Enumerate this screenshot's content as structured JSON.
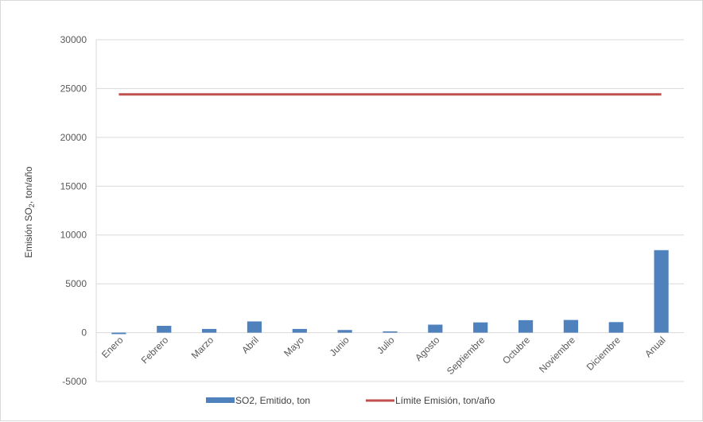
{
  "chart_data": {
    "type": "bar",
    "categories": [
      "Enero",
      "Febrero",
      "Marzo",
      "Abril",
      "Mayo",
      "Junio",
      "Julio",
      "Agosto",
      "Septiembre",
      "Octubre",
      "Noviembre",
      "Diciembre",
      "Anual"
    ],
    "series": [
      {
        "name": "SO2, Emitido, ton",
        "kind": "bar",
        "color": "#4f81bd",
        "values": [
          -150,
          700,
          380,
          1150,
          380,
          270,
          130,
          820,
          1050,
          1280,
          1300,
          1080,
          8450
        ]
      },
      {
        "name": "Límite Emisión, ton/año",
        "kind": "line",
        "color": "#c0504d",
        "values": [
          24400,
          24400,
          24400,
          24400,
          24400,
          24400,
          24400,
          24400,
          24400,
          24400,
          24400,
          24400,
          24400
        ]
      }
    ],
    "ylabel_main": "Emisión SO",
    "ylabel_sub": "2",
    "ylabel_tail": ", ton/año",
    "ylim": [
      -5000,
      30000
    ],
    "yticks": [
      -5000,
      0,
      5000,
      10000,
      15000,
      20000,
      25000,
      30000
    ],
    "grid": "horizontal",
    "legend_position": "bottom"
  }
}
